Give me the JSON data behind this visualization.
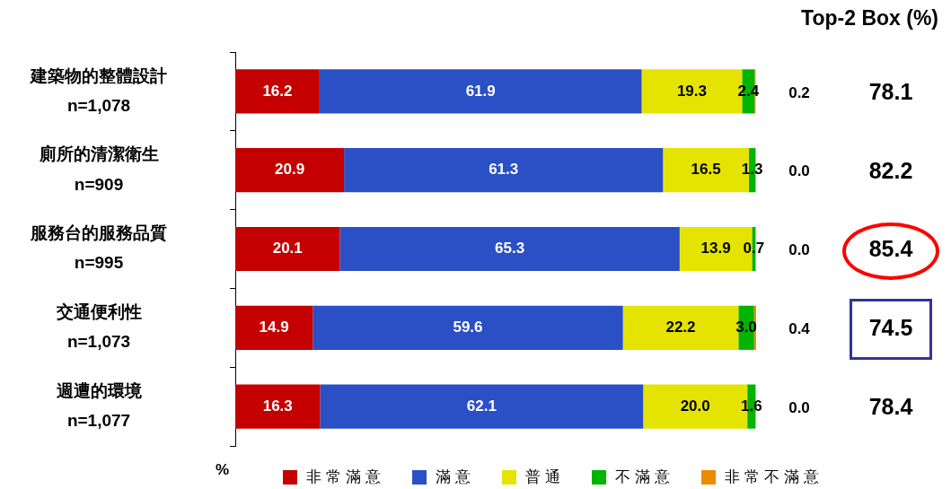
{
  "chart_data": {
    "type": "bar",
    "orientation": "horizontal",
    "stacked": true,
    "categories": [
      "建築物的整體設計\nn=1,078",
      "廁所的清潔衛生\nn=909",
      "服務台的服務品質\nn=995",
      "交通便利性\nn=1,073",
      "週遭的環境\nn=1,077"
    ],
    "series": [
      {
        "name": "非常滿意",
        "color": "#c40000",
        "values": [
          16.2,
          20.9,
          20.1,
          14.9,
          16.3
        ],
        "value_labels": [
          "16.2",
          "20.9",
          "20.1",
          "14.9",
          "16.3"
        ]
      },
      {
        "name": "滿意",
        "color": "#2b4fc4",
        "values": [
          61.9,
          61.3,
          65.3,
          59.6,
          62.1
        ],
        "value_labels": [
          "61.9",
          "61.3",
          "65.3",
          "59.6",
          "62.1"
        ]
      },
      {
        "name": "普通",
        "color": "#e4e400",
        "values": [
          19.3,
          16.5,
          13.9,
          22.2,
          20.0
        ],
        "value_labels": [
          "19.3",
          "16.5",
          "13.9",
          "22.2",
          "20.0"
        ]
      },
      {
        "name": "不滿意",
        "color": "#00b400",
        "values": [
          2.4,
          1.3,
          0.7,
          3.0,
          1.6
        ],
        "value_labels": [
          "2.4",
          "1.3",
          "0.7",
          "3.0",
          "1.6"
        ]
      },
      {
        "name": "非常不滿意",
        "color": "#ec8a00",
        "values": [
          0.2,
          0.0,
          0.0,
          0.4,
          0.0
        ],
        "value_labels": [
          "0.2",
          "0.0",
          "0.0",
          "0.4",
          "0.0"
        ]
      }
    ],
    "xlabel": "%",
    "annotations": [
      "Top-2 Box (%)",
      "78.1",
      "82.2",
      "85.4",
      "74.5",
      "78.4"
    ],
    "tick_labels": "y",
    "legend": "bottom"
  }
}
